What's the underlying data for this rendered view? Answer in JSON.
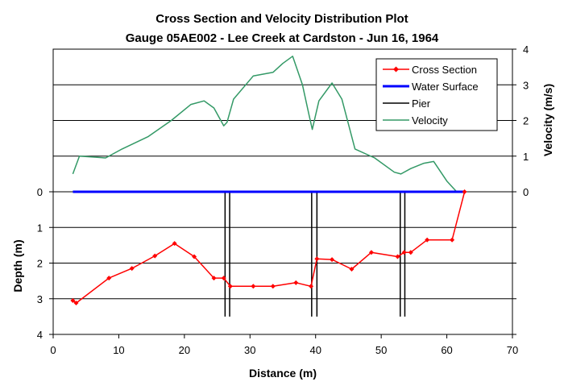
{
  "chart_data": {
    "type": "line",
    "title": "Cross Section and Velocity Distribution Plot",
    "subtitle": "Gauge 05AE002 - Lee Creek at Cardston - Jun 16, 1964",
    "xlabel": "Distance (m)",
    "ylabel_left": "Depth (m)",
    "ylabel_right": "Velocity (m/s)",
    "xlim": [
      0,
      70
    ],
    "depth_lim": [
      0,
      4
    ],
    "velocity_lim": [
      0,
      4
    ],
    "x_ticks": [
      "0",
      "10",
      "20",
      "30",
      "40",
      "50",
      "60",
      "70"
    ],
    "depth_ticks": [
      "0",
      "1",
      "2",
      "3",
      "4"
    ],
    "velocity_ticks": [
      "0",
      "1",
      "2",
      "3",
      "4"
    ],
    "grid": true,
    "legend_position": "top-right",
    "series": [
      {
        "name": "Cross Section",
        "color": "#ff0000",
        "marker": "diamond",
        "x": [
          3.0,
          3.5,
          8.5,
          12.0,
          15.5,
          18.5,
          21.5,
          24.5,
          26.0,
          27.0,
          30.5,
          33.5,
          37.0,
          39.3,
          40.2,
          42.5,
          45.5,
          48.5,
          52.5,
          53.5,
          54.5,
          57.0,
          60.8,
          62.7
        ],
        "depth": [
          3.05,
          3.12,
          2.42,
          2.15,
          1.8,
          1.45,
          1.82,
          2.42,
          2.42,
          2.65,
          2.65,
          2.65,
          2.55,
          2.65,
          1.88,
          1.9,
          2.17,
          1.7,
          1.82,
          1.7,
          1.7,
          1.35,
          1.35,
          0.0
        ]
      },
      {
        "name": "Water Surface",
        "color": "#0000ff",
        "x": [
          3.0,
          62.7
        ],
        "depth": [
          0.0,
          0.0
        ]
      },
      {
        "name": "Pier",
        "color": "#000000",
        "x": [
          26.2,
          26.9,
          39.4,
          40.2,
          52.9,
          53.6
        ],
        "depth_range": [
          0.0,
          3.5
        ]
      },
      {
        "name": "Velocity",
        "color": "#339966",
        "x": [
          3.0,
          4.0,
          8.0,
          10.5,
          14.5,
          18.0,
          21.0,
          23.0,
          24.5,
          26.0,
          26.5,
          27.5,
          30.5,
          33.5,
          35.0,
          36.5,
          38.0,
          39.0,
          39.5,
          40.5,
          42.5,
          44.0,
          46.0,
          49.0,
          52.0,
          53.0,
          54.5,
          56.5,
          58.0,
          60.0,
          61.5
        ],
        "velocity": [
          0.5,
          1.0,
          0.95,
          1.2,
          1.55,
          2.0,
          2.45,
          2.55,
          2.35,
          1.85,
          1.95,
          2.6,
          3.25,
          3.35,
          3.6,
          3.8,
          3.0,
          2.15,
          1.75,
          2.55,
          3.05,
          2.6,
          1.2,
          0.95,
          0.55,
          0.5,
          0.65,
          0.8,
          0.85,
          0.3,
          0.0
        ]
      }
    ]
  }
}
